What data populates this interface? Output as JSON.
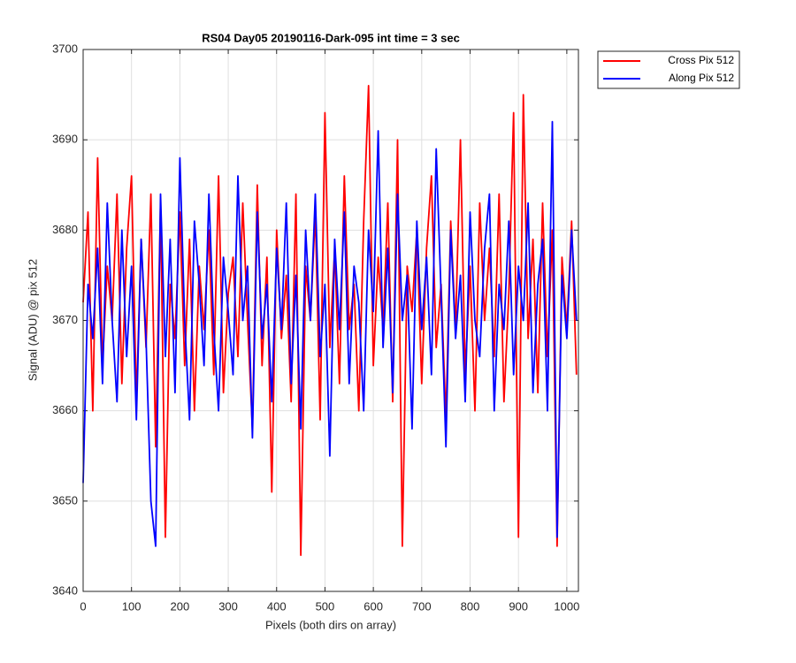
{
  "chart_data": {
    "type": "line",
    "title": "RS04 Day05 20190116-Dark-095 int time = 3 sec",
    "xlabel": "Pixels (both dirs on array)",
    "ylabel": "Signal (ADU) @ pix 512",
    "xlim": [
      0,
      1024
    ],
    "ylim": [
      3640,
      3700
    ],
    "xticks": [
      0,
      100,
      200,
      300,
      400,
      500,
      600,
      700,
      800,
      900,
      1000
    ],
    "yticks": [
      3640,
      3650,
      3660,
      3670,
      3680,
      3690,
      3700
    ],
    "grid": true,
    "legend": "outside-top-right",
    "x": [
      0,
      10,
      20,
      30,
      40,
      50,
      60,
      70,
      80,
      90,
      100,
      110,
      120,
      130,
      140,
      150,
      160,
      170,
      180,
      190,
      200,
      210,
      220,
      230,
      240,
      250,
      260,
      270,
      280,
      290,
      300,
      310,
      320,
      330,
      340,
      350,
      360,
      370,
      380,
      390,
      400,
      410,
      420,
      430,
      440,
      450,
      460,
      470,
      480,
      490,
      500,
      510,
      520,
      530,
      540,
      550,
      560,
      570,
      580,
      590,
      600,
      610,
      620,
      630,
      640,
      650,
      660,
      670,
      680,
      690,
      700,
      710,
      720,
      730,
      740,
      750,
      760,
      770,
      780,
      790,
      800,
      810,
      820,
      830,
      840,
      850,
      860,
      870,
      880,
      890,
      900,
      910,
      920,
      930,
      940,
      950,
      960,
      970,
      980,
      990,
      1000,
      1010,
      1020
    ],
    "series": [
      {
        "name": "Cross Pix 512",
        "color": "#ff0000",
        "values": [
          3672,
          3682,
          3660,
          3688,
          3665,
          3676,
          3670,
          3684,
          3663,
          3678,
          3686,
          3661,
          3679,
          3667,
          3684,
          3656,
          3683,
          3646,
          3674,
          3668,
          3682,
          3665,
          3679,
          3660,
          3676,
          3669,
          3680,
          3664,
          3686,
          3662,
          3673,
          3677,
          3666,
          3683,
          3670,
          3658,
          3685,
          3665,
          3677,
          3651,
          3680,
          3668,
          3675,
          3661,
          3684,
          3644,
          3676,
          3670,
          3682,
          3659,
          3693,
          3667,
          3678,
          3663,
          3686,
          3669,
          3674,
          3660,
          3681,
          3696,
          3665,
          3677,
          3669,
          3683,
          3661,
          3690,
          3645,
          3676,
          3671,
          3680,
          3663,
          3678,
          3686,
          3667,
          3674,
          3659,
          3681,
          3669,
          3690,
          3664,
          3676,
          3660,
          3683,
          3670,
          3678,
          3666,
          3684,
          3661,
          3673,
          3693,
          3646,
          3695,
          3668,
          3679,
          3662,
          3683,
          3666,
          3680,
          3645,
          3677,
          3669,
          3681,
          3664
        ]
      },
      {
        "name": "Along Pix 512",
        "color": "#0000ff",
        "values": [
          3652,
          3674,
          3668,
          3678,
          3663,
          3683,
          3670,
          3661,
          3680,
          3666,
          3676,
          3659,
          3679,
          3668,
          3650,
          3645,
          3684,
          3666,
          3679,
          3662,
          3688,
          3670,
          3659,
          3681,
          3674,
          3665,
          3684,
          3669,
          3660,
          3677,
          3671,
          3664,
          3686,
          3670,
          3676,
          3657,
          3682,
          3668,
          3674,
          3661,
          3678,
          3669,
          3683,
          3663,
          3675,
          3658,
          3680,
          3670,
          3684,
          3666,
          3674,
          3655,
          3679,
          3669,
          3682,
          3663,
          3676,
          3672,
          3660,
          3680,
          3671,
          3691,
          3667,
          3678,
          3662,
          3684,
          3670,
          3675,
          3658,
          3681,
          3669,
          3677,
          3664,
          3689,
          3673,
          3656,
          3680,
          3668,
          3675,
          3661,
          3682,
          3670,
          3666,
          3678,
          3684,
          3660,
          3674,
          3669,
          3681,
          3664,
          3676,
          3670,
          3683,
          3662,
          3674,
          3679,
          3660,
          3692,
          3646,
          3675,
          3668,
          3680,
          3670
        ]
      }
    ]
  }
}
